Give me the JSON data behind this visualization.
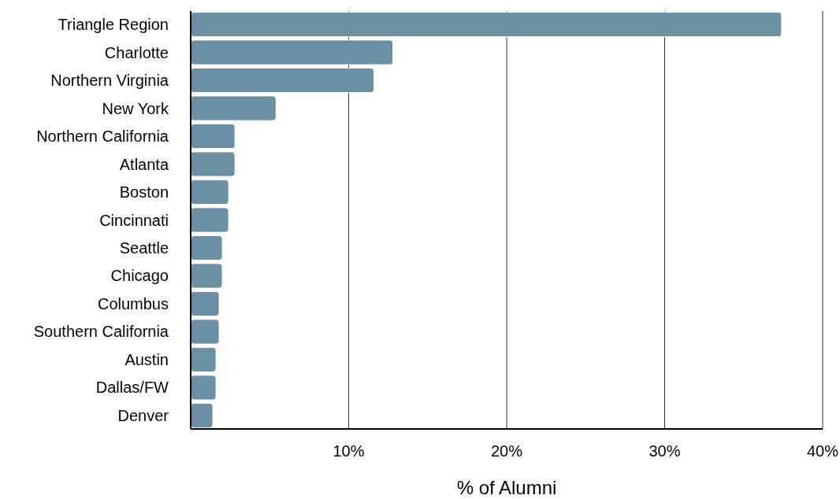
{
  "chart_data": {
    "type": "bar",
    "orientation": "horizontal",
    "xlabel": "% of Alumni",
    "categories": [
      "Triangle Region",
      "Charlotte",
      "Northern Virginia",
      "New York",
      "Northern California",
      "Atlanta",
      "Boston",
      "Cincinnati",
      "Seattle",
      "Chicago",
      "Columbus",
      "Southern California",
      "Austin",
      "Dallas/FW",
      "Denver"
    ],
    "values": [
      37.4,
      12.8,
      11.6,
      5.4,
      2.8,
      2.8,
      2.4,
      2.4,
      2.0,
      2.0,
      1.8,
      1.8,
      1.6,
      1.6,
      1.4
    ],
    "color": "#6b8fa3",
    "xlim": [
      0,
      40
    ],
    "xticks": [
      {
        "value": 10,
        "label": "10%"
      },
      {
        "value": 20,
        "label": "20%"
      },
      {
        "value": 30,
        "label": "30%"
      },
      {
        "value": 40,
        "label": "40%"
      }
    ],
    "grid": "x"
  }
}
